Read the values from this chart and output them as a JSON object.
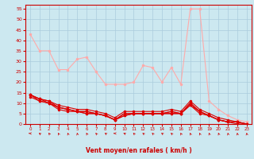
{
  "title": "",
  "xlabel": "Vent moyen/en rafales ( km/h )",
  "xlim": [
    -0.5,
    23.5
  ],
  "ylim": [
    0,
    57
  ],
  "yticks": [
    0,
    5,
    10,
    15,
    20,
    25,
    30,
    35,
    40,
    45,
    50,
    55
  ],
  "xticks": [
    0,
    1,
    2,
    3,
    4,
    5,
    6,
    7,
    8,
    9,
    10,
    11,
    12,
    13,
    14,
    15,
    16,
    17,
    18,
    19,
    20,
    21,
    22,
    23
  ],
  "bg_color": "#cce8f0",
  "grid_color": "#aaccdd",
  "series": [
    {
      "x": [
        0,
        1,
        2,
        3,
        4,
        5,
        6,
        7,
        8,
        9,
        10,
        11,
        12,
        13,
        14,
        15,
        16,
        17,
        18,
        19,
        20,
        21,
        22,
        23
      ],
      "y": [
        43,
        35,
        35,
        26,
        26,
        31,
        32,
        25,
        19,
        19,
        19,
        20,
        28,
        27,
        20,
        27,
        19,
        55,
        55,
        11,
        7,
        4,
        2,
        1
      ],
      "color": "#ffaaaa",
      "marker": "o",
      "markersize": 1.5,
      "linewidth": 0.8
    },
    {
      "x": [
        0,
        1,
        2,
        3,
        4,
        5,
        6,
        7,
        8,
        9,
        10,
        11,
        12,
        13,
        14,
        15,
        16,
        17,
        18,
        19,
        20,
        21,
        22,
        23
      ],
      "y": [
        14,
        12,
        11,
        9,
        8,
        7,
        7,
        6,
        5,
        3,
        6,
        6,
        6,
        6,
        6,
        7,
        6,
        11,
        7,
        5,
        3,
        2,
        1,
        0
      ],
      "color": "#dd0000",
      "marker": "o",
      "markersize": 1.5,
      "linewidth": 0.8
    },
    {
      "x": [
        0,
        1,
        2,
        3,
        4,
        5,
        6,
        7,
        8,
        9,
        10,
        11,
        12,
        13,
        14,
        15,
        16,
        17,
        18,
        19,
        20,
        21,
        22,
        23
      ],
      "y": [
        14,
        11,
        10,
        8,
        7,
        6,
        6,
        5,
        4,
        2,
        5,
        5,
        5,
        5,
        5,
        6,
        5,
        10,
        6,
        4,
        2,
        1,
        1,
        0
      ],
      "color": "#dd0000",
      "marker": "o",
      "markersize": 1.5,
      "linewidth": 0.8
    },
    {
      "x": [
        0,
        1,
        2,
        3,
        4,
        5,
        6,
        7,
        8,
        9,
        10,
        11,
        12,
        13,
        14,
        15,
        16,
        17,
        18,
        19,
        20,
        21,
        22,
        23
      ],
      "y": [
        13,
        11,
        10,
        7,
        6,
        6,
        5,
        5,
        4,
        2,
        4,
        5,
        5,
        5,
        5,
        5,
        5,
        9,
        6,
        4,
        2,
        1,
        1,
        0
      ],
      "color": "#dd0000",
      "marker": "o",
      "markersize": 1.5,
      "linewidth": 0.8
    },
    {
      "x": [
        0,
        1,
        2,
        3,
        4,
        5,
        6,
        7,
        8,
        9,
        10,
        11,
        12,
        13,
        14,
        15,
        16,
        17,
        18,
        19,
        20,
        21,
        22,
        23
      ],
      "y": [
        14,
        12,
        10,
        8,
        7,
        6,
        6,
        5,
        4,
        2,
        5,
        5,
        5,
        5,
        5,
        6,
        5,
        10,
        6,
        4,
        2,
        1,
        1,
        0
      ],
      "color": "#dd0000",
      "marker": "o",
      "markersize": 1.5,
      "linewidth": 0.8
    },
    {
      "x": [
        0,
        1,
        2,
        3,
        4,
        5,
        6,
        7,
        8,
        9,
        10,
        11,
        12,
        13,
        14,
        15,
        16,
        17,
        18,
        19,
        20,
        21,
        22,
        23
      ],
      "y": [
        14,
        12,
        11,
        8,
        7,
        6,
        5,
        5,
        4,
        2,
        4,
        5,
        5,
        5,
        5,
        5,
        5,
        9,
        5,
        4,
        2,
        1,
        0,
        0
      ],
      "color": "#dd0000",
      "marker": "o",
      "markersize": 1.5,
      "linewidth": 0.8
    }
  ],
  "arrows_angles": [
    270,
    220,
    210,
    200,
    195,
    190,
    200,
    210,
    225,
    270,
    240,
    215,
    220,
    215,
    225,
    215,
    200,
    195,
    195,
    195,
    195,
    190,
    185,
    185
  ]
}
